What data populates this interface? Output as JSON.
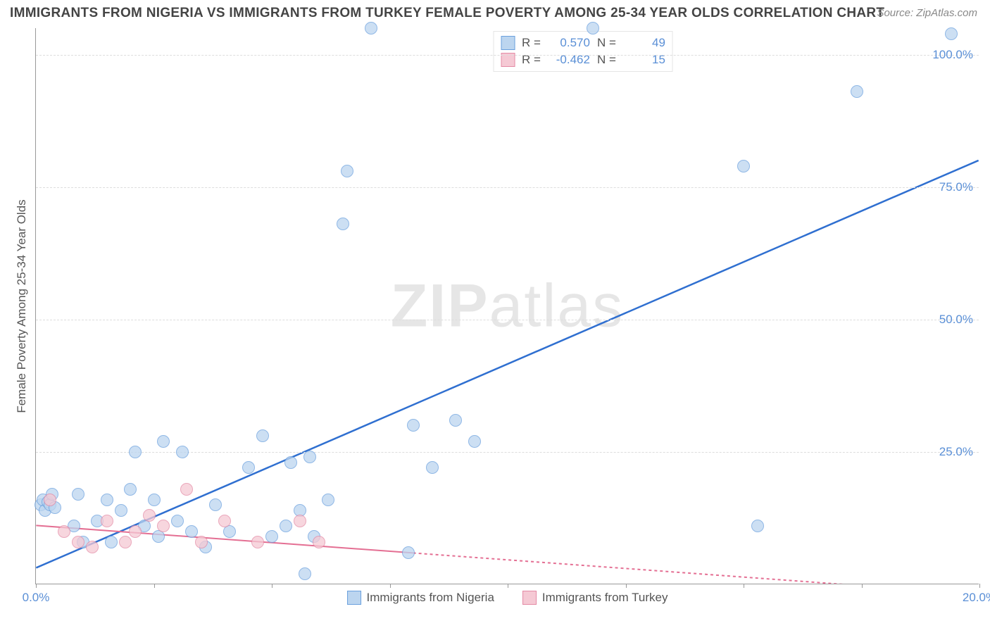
{
  "title": "IMMIGRANTS FROM NIGERIA VS IMMIGRANTS FROM TURKEY FEMALE POVERTY AMONG 25-34 YEAR OLDS CORRELATION CHART",
  "source": "Source: ZipAtlas.com",
  "watermark_a": "ZIP",
  "watermark_b": "atlas",
  "ylabel": "Female Poverty Among 25-34 Year Olds",
  "chart": {
    "type": "scatter",
    "xlim": [
      0,
      20
    ],
    "ylim": [
      0,
      105
    ],
    "background_color": "#ffffff",
    "grid_color": "#dddddd",
    "axis_color": "#999999",
    "tick_color": "#5a8fd6",
    "tick_fontsize": 17,
    "yticks": [
      25,
      50,
      75,
      100
    ],
    "ytick_labels": [
      "25.0%",
      "50.0%",
      "75.0%",
      "100.0%"
    ],
    "xticks": [
      0,
      20
    ],
    "xtick_labels": [
      "0.0%",
      "20.0%"
    ],
    "xtick_marks": [
      0,
      2.5,
      5,
      7.5,
      10,
      12.5,
      15,
      17.5,
      20
    ],
    "point_radius": 9,
    "point_stroke_width": 1,
    "series": [
      {
        "name": "Immigrants from Nigeria",
        "fill": "#bcd5ef",
        "stroke": "#6aa0de",
        "fill_opacity": 0.75,
        "r_label": "R =",
        "r_value": "0.570",
        "n_label": "N =",
        "n_value": "49",
        "trend": {
          "x1": 0,
          "y1": 3,
          "x2": 20,
          "y2": 80,
          "color": "#2f6fd0",
          "width": 2.5,
          "dash": ""
        },
        "points": [
          [
            0.1,
            15
          ],
          [
            0.15,
            16
          ],
          [
            0.2,
            14
          ],
          [
            0.25,
            15.5
          ],
          [
            0.3,
            15
          ],
          [
            0.35,
            17
          ],
          [
            0.4,
            14.5
          ],
          [
            0.8,
            11
          ],
          [
            0.9,
            17
          ],
          [
            1.0,
            8
          ],
          [
            1.3,
            12
          ],
          [
            1.5,
            16
          ],
          [
            1.6,
            8
          ],
          [
            1.8,
            14
          ],
          [
            2.0,
            18
          ],
          [
            2.1,
            25
          ],
          [
            2.3,
            11
          ],
          [
            2.5,
            16
          ],
          [
            2.6,
            9
          ],
          [
            2.7,
            27
          ],
          [
            3.0,
            12
          ],
          [
            3.1,
            25
          ],
          [
            3.3,
            10
          ],
          [
            3.6,
            7
          ],
          [
            3.8,
            15
          ],
          [
            4.1,
            10
          ],
          [
            4.5,
            22
          ],
          [
            4.8,
            28
          ],
          [
            5.0,
            9
          ],
          [
            5.3,
            11
          ],
          [
            5.4,
            23
          ],
          [
            5.6,
            14
          ],
          [
            5.7,
            2
          ],
          [
            5.8,
            24
          ],
          [
            5.9,
            9
          ],
          [
            6.2,
            16
          ],
          [
            6.5,
            68
          ],
          [
            6.6,
            78
          ],
          [
            7.1,
            105
          ],
          [
            7.9,
            6
          ],
          [
            8.0,
            30
          ],
          [
            8.4,
            22
          ],
          [
            8.9,
            31
          ],
          [
            9.3,
            27
          ],
          [
            11.8,
            105
          ],
          [
            15.0,
            79
          ],
          [
            15.3,
            11
          ],
          [
            17.4,
            93
          ],
          [
            19.4,
            104
          ]
        ]
      },
      {
        "name": "Immigrants from Turkey",
        "fill": "#f5c9d4",
        "stroke": "#e48aa5",
        "fill_opacity": 0.75,
        "r_label": "R =",
        "r_value": "-0.462",
        "n_label": "N =",
        "n_value": "15",
        "trend": {
          "x1": 0,
          "y1": 11,
          "x2": 20,
          "y2": -2,
          "color": "#e46f93",
          "width": 2,
          "dash": "4 4",
          "solid_until_x": 8
        },
        "points": [
          [
            0.3,
            16
          ],
          [
            0.6,
            10
          ],
          [
            0.9,
            8
          ],
          [
            1.2,
            7
          ],
          [
            1.5,
            12
          ],
          [
            1.9,
            8
          ],
          [
            2.1,
            10
          ],
          [
            2.4,
            13
          ],
          [
            2.7,
            11
          ],
          [
            3.2,
            18
          ],
          [
            3.5,
            8
          ],
          [
            4.0,
            12
          ],
          [
            4.7,
            8
          ],
          [
            5.6,
            12
          ],
          [
            6.0,
            8
          ]
        ]
      }
    ]
  },
  "legend_bottom": [
    {
      "label": "Immigrants from Nigeria",
      "fill": "#bcd5ef",
      "stroke": "#6aa0de"
    },
    {
      "label": "Immigrants from Turkey",
      "fill": "#f5c9d4",
      "stroke": "#e48aa5"
    }
  ]
}
